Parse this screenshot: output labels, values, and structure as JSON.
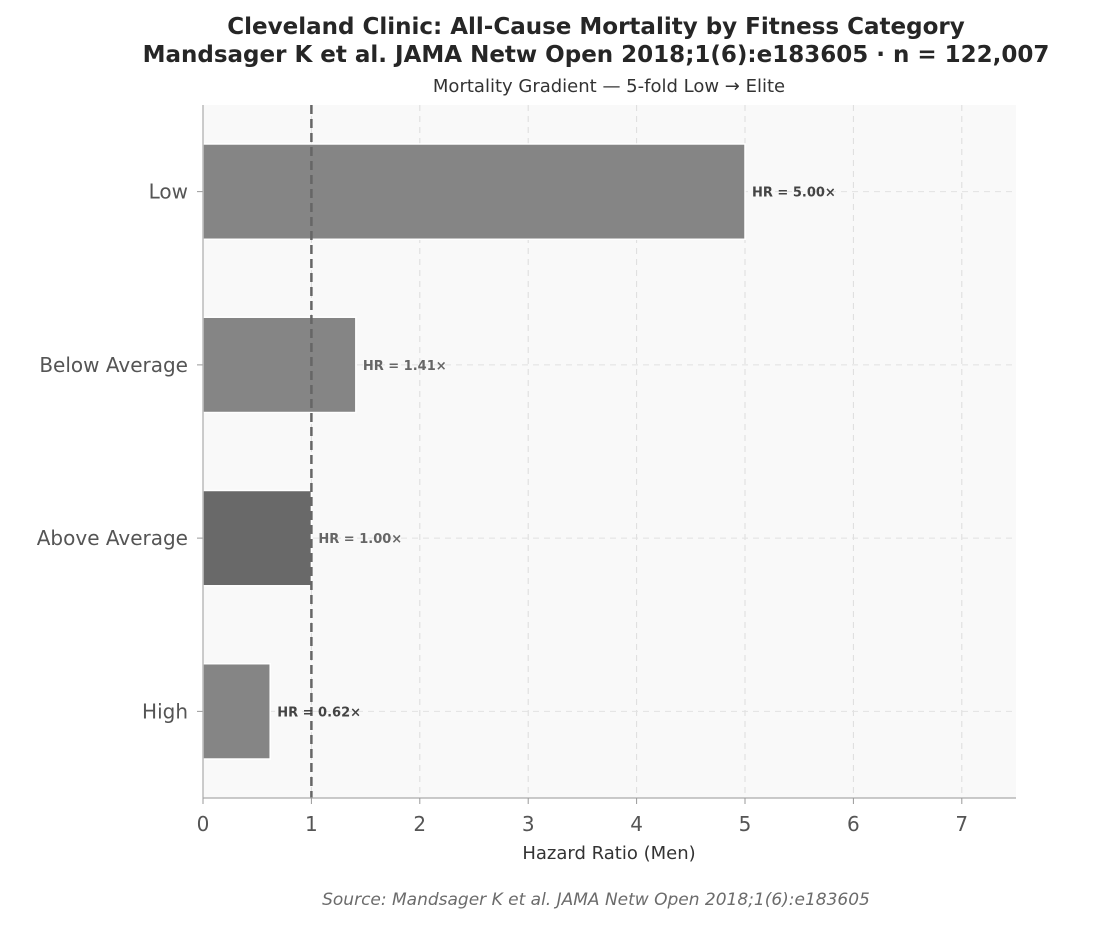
{
  "chart_data": {
    "type": "bar",
    "orientation": "horizontal",
    "title_line1": "Cleveland Clinic: All-Cause Mortality by Fitness Category",
    "title_line2": "Mandsager K et al. JAMA Netw Open 2018;1(6):e183605  ·  n = 122,007",
    "subtitle": "Mortality Gradient — 5-fold Low → Elite",
    "xlabel": "Hazard Ratio (Men)",
    "ylabel": "",
    "source": "Source: Mandsager K et al. JAMA Netw Open 2018;1(6):e183605",
    "categories": [
      "Low",
      "Below Average",
      "Above Average",
      "High"
    ],
    "values": [
      5.0,
      1.41,
      1.0,
      0.62
    ],
    "data_labels": [
      "HR = 5.00×",
      "HR = 1.41×",
      "HR = 1.00×",
      "HR = 0.62×"
    ],
    "xlim": [
      0,
      7.5
    ],
    "xticks": [
      0,
      1,
      2,
      3,
      4,
      5,
      6,
      7
    ],
    "reference_line": 1,
    "grid": true,
    "colors": {
      "bar": "#858585",
      "reference_bar": "#696969",
      "background": "#f9f9f9",
      "reference_line": "#666666",
      "label_strong": "#444444",
      "label_muted": "#666666"
    }
  }
}
